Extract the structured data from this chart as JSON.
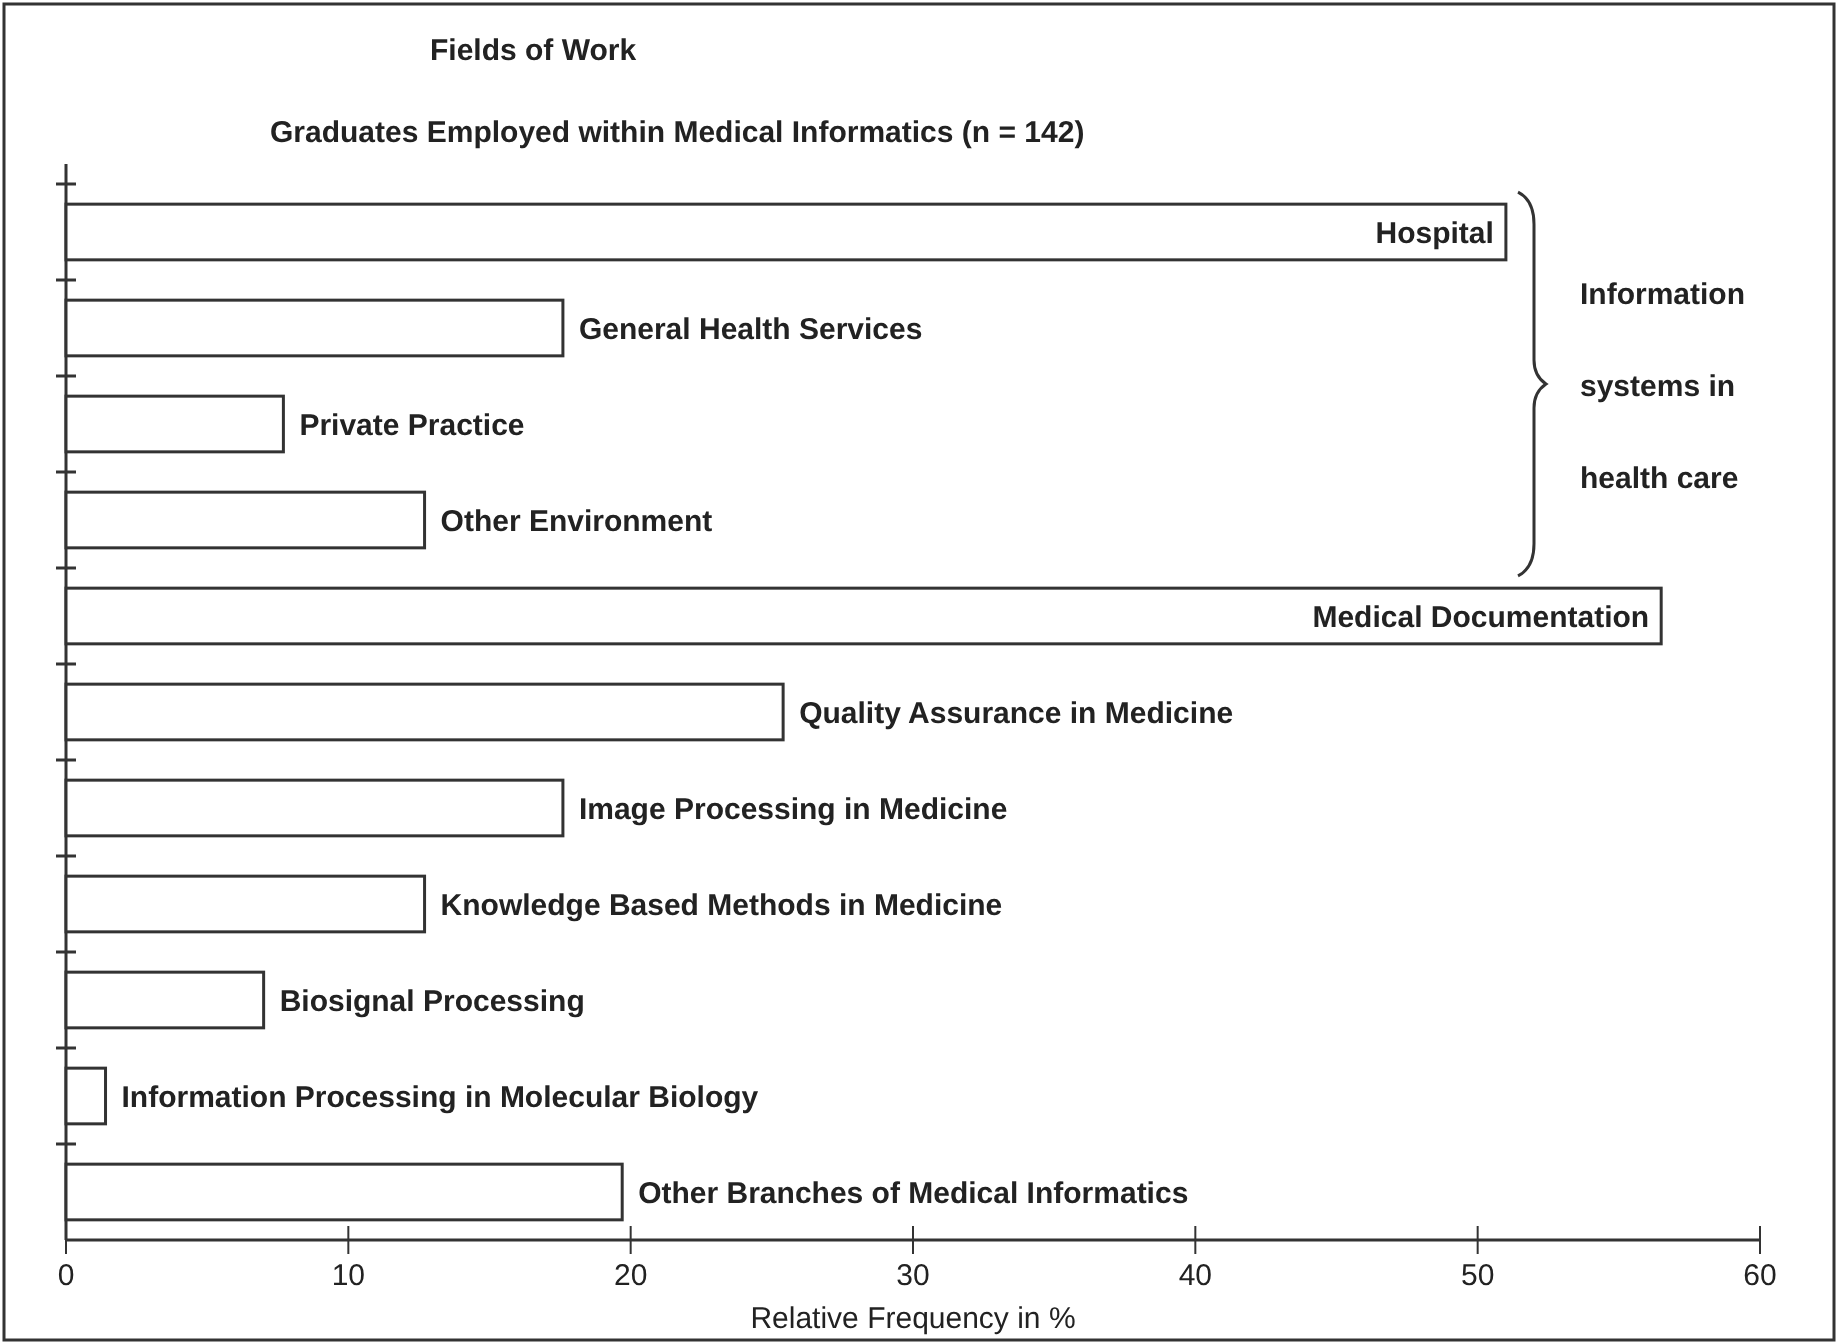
{
  "chart_data": {
    "type": "bar",
    "orientation": "horizontal",
    "title": "Fields of Work",
    "subtitle": "Graduates Employed within Medical Informatics (n = 142)",
    "xlabel": "Relative Frequency in %",
    "categories": [
      "Hospital",
      "General Health Services",
      "Private Practice",
      "Other Environment",
      "Medical Documentation",
      "Quality Assurance in Medicine",
      "Image Processing  in Medicine",
      "Knowledge Based Methods in Medicine",
      "Biosignal Processing",
      "Information Processing in Molecular Biology",
      "Other Branches of Medical Informatics"
    ],
    "values": [
      51,
      17.6,
      7.7,
      12.7,
      56.5,
      25.4,
      17.6,
      12.7,
      7,
      1.4,
      19.7
    ],
    "color": "#ffffff",
    "xlim": [
      0,
      60
    ],
    "xticks": [
      0,
      10,
      20,
      30,
      40,
      50,
      60
    ],
    "annotations": [
      "Information systems in health care"
    ],
    "grid": false
  }
}
